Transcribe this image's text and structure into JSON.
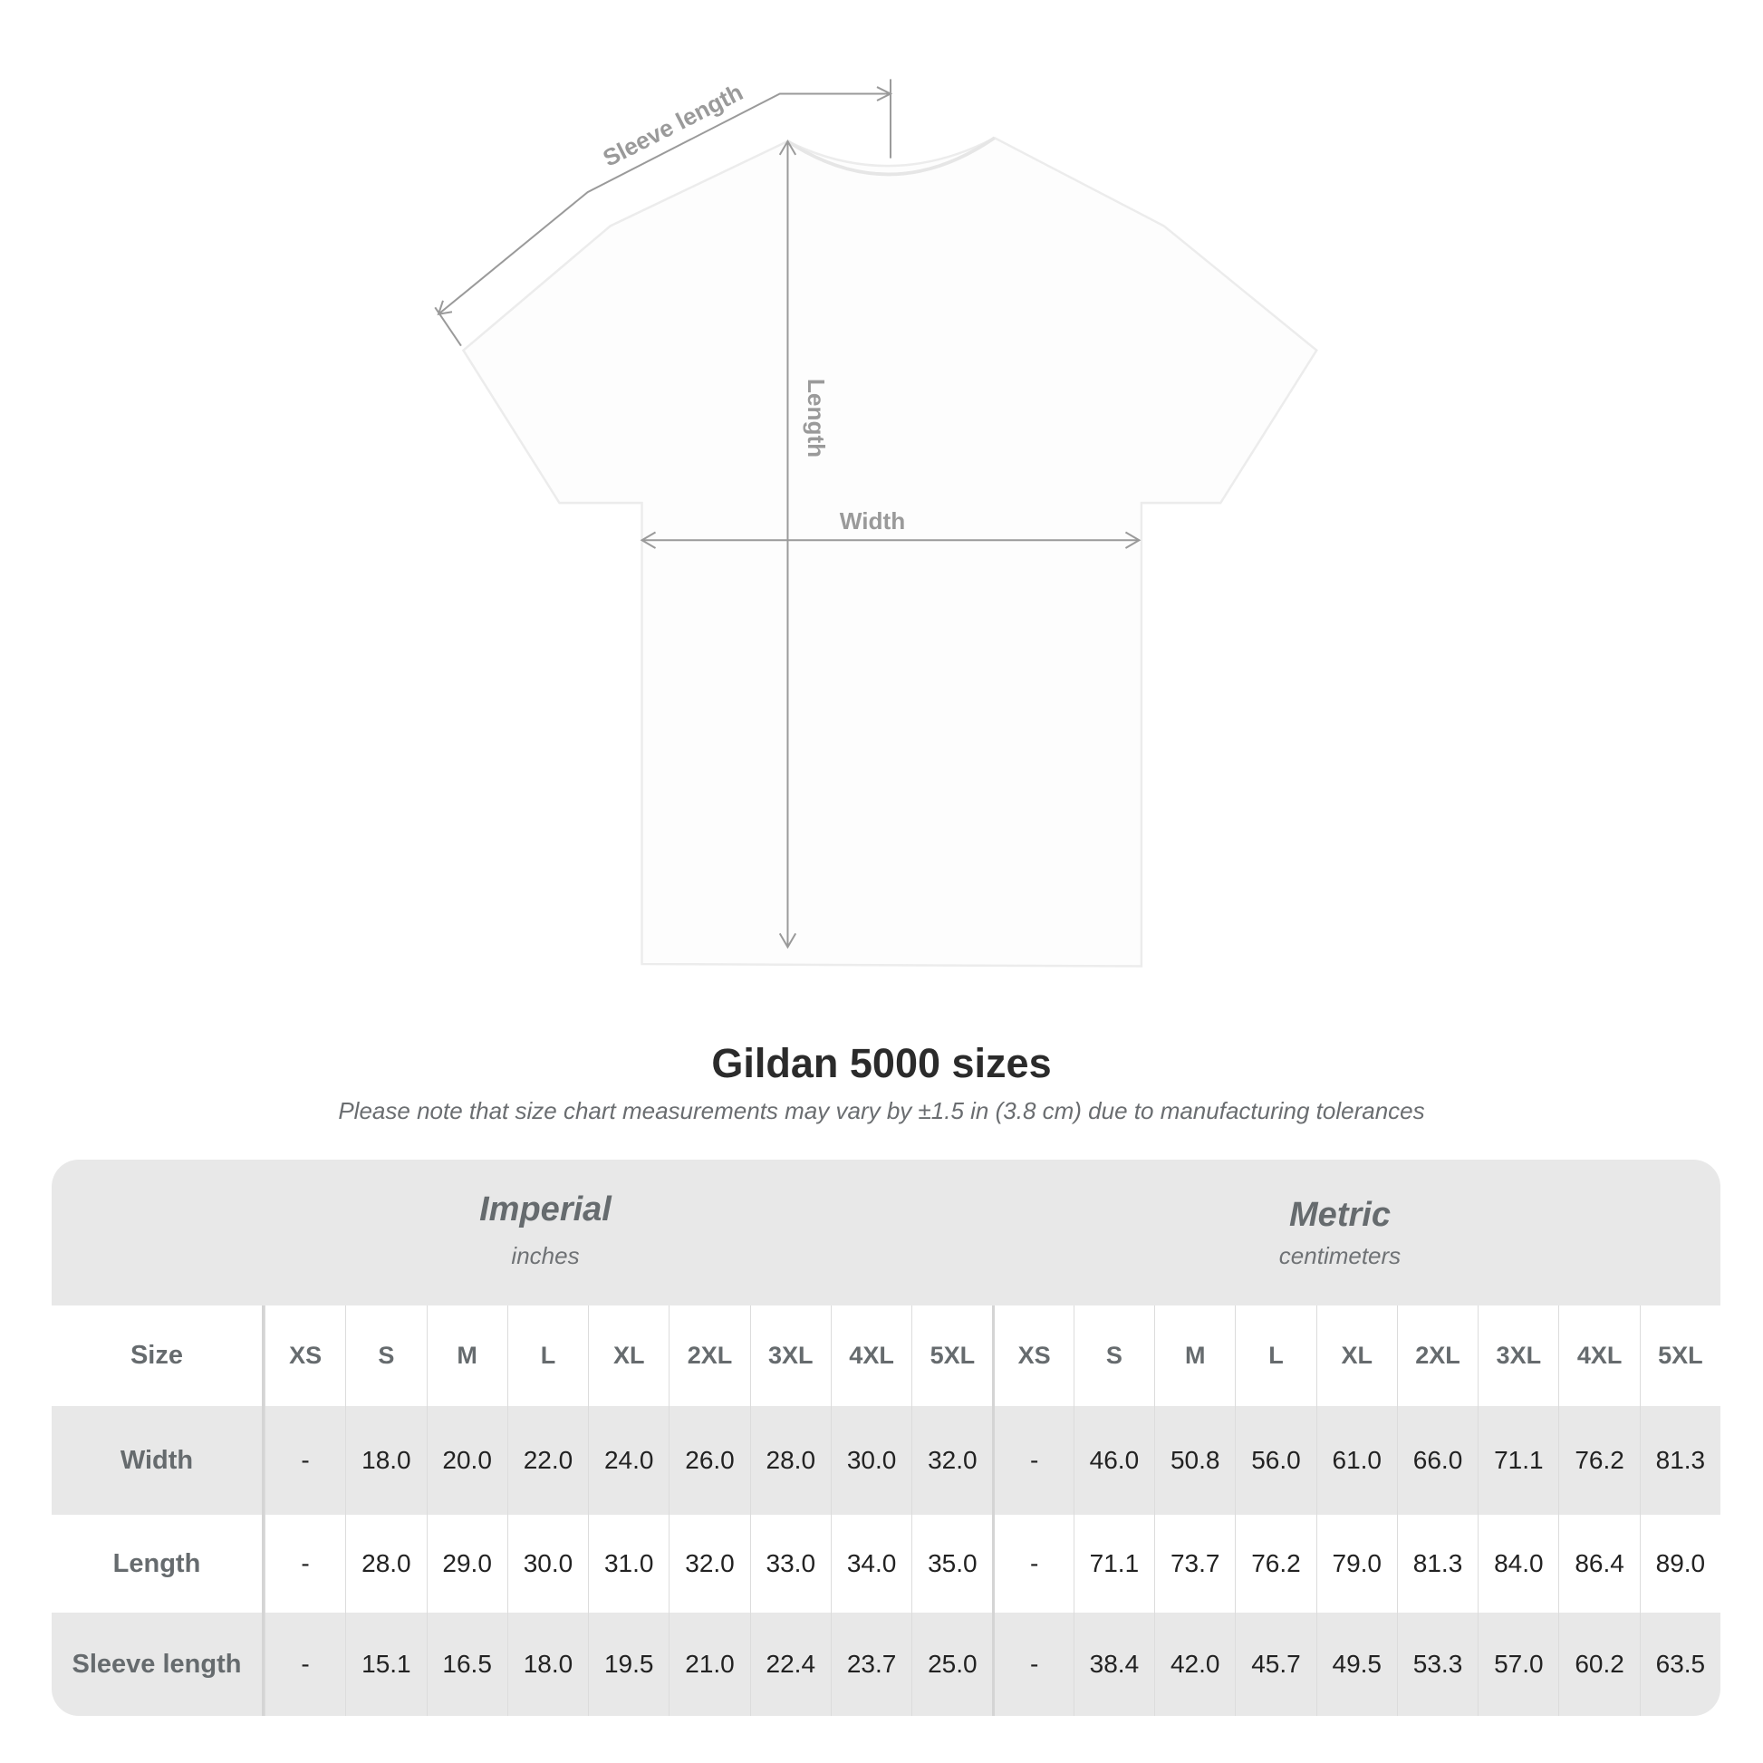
{
  "diagram": {
    "labels": {
      "sleeve": "Sleeve length",
      "length": "Length",
      "width": "Width"
    },
    "shirt_color": "#ffffff",
    "line_color": "#9a9a9a"
  },
  "title": "Gildan 5000 sizes",
  "subtitle": "Please note that size chart measurements may vary by ±1.5 in (3.8 cm) due to manufacturing tolerances",
  "table": {
    "imperial": {
      "name": "Imperial",
      "unit": "inches"
    },
    "metric": {
      "name": "Metric",
      "unit": "centimeters"
    },
    "size_label": "Size",
    "sizes": [
      "XS",
      "S",
      "M",
      "L",
      "XL",
      "2XL",
      "3XL",
      "4XL",
      "5XL"
    ],
    "rows": [
      {
        "label": "Width",
        "imperial": [
          "-",
          "18.0",
          "20.0",
          "22.0",
          "24.0",
          "26.0",
          "28.0",
          "30.0",
          "32.0"
        ],
        "metric": [
          "-",
          "46.0",
          "50.8",
          "56.0",
          "61.0",
          "66.0",
          "71.1",
          "76.2",
          "81.3"
        ]
      },
      {
        "label": "Length",
        "imperial": [
          "-",
          "28.0",
          "29.0",
          "30.0",
          "31.0",
          "32.0",
          "33.0",
          "34.0",
          "35.0"
        ],
        "metric": [
          "-",
          "71.1",
          "73.7",
          "76.2",
          "79.0",
          "81.3",
          "84.0",
          "86.4",
          "89.0"
        ]
      },
      {
        "label": "Sleeve length",
        "imperial": [
          "-",
          "15.1",
          "16.5",
          "18.0",
          "19.5",
          "21.0",
          "22.4",
          "23.7",
          "25.0"
        ],
        "metric": [
          "-",
          "38.4",
          "42.0",
          "45.7",
          "49.5",
          "53.3",
          "57.0",
          "60.2",
          "63.5"
        ]
      }
    ]
  }
}
